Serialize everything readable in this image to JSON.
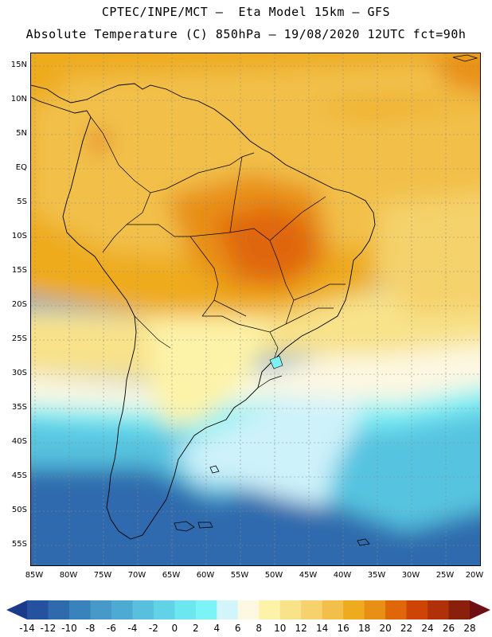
{
  "header": {
    "line1": "CPTEC/INPE/MCT —  Eta Model 15km — GFS",
    "line2": "Absolute Temperature (C) 850hPa — 19/08/2020 12UTC fct=90h"
  },
  "map": {
    "lat_labels": [
      "15N",
      "10N",
      "5N",
      "EQ",
      "5S",
      "10S",
      "15S",
      "20S",
      "25S",
      "30S",
      "35S",
      "40S",
      "45S",
      "50S",
      "55S"
    ],
    "lon_labels": [
      "85W",
      "80W",
      "75W",
      "70W",
      "65W",
      "60W",
      "55W",
      "50W",
      "45W",
      "40W",
      "35W",
      "30W",
      "25W",
      "20W"
    ]
  },
  "legend": {
    "labels": [
      "-14",
      "-12",
      "-10",
      "-8",
      "-6",
      "-4",
      "-2",
      "0",
      "2",
      "4",
      "6",
      "8",
      "10",
      "12",
      "14",
      "16",
      "18",
      "20",
      "22",
      "24",
      "26",
      "28"
    ],
    "colors": [
      "#1c3a8c",
      "#25529e",
      "#2f6aad",
      "#3a82bc",
      "#4799c8",
      "#4caad3",
      "#58bfdc",
      "#62d3e6",
      "#6ce6ef",
      "#7cf3f6",
      "#d2f4fb",
      "#fdf8e2",
      "#fdf3a8",
      "#f8e28a",
      "#f5d26c",
      "#f2c04a",
      "#eeab1f",
      "#e88f15",
      "#e0660a",
      "#cd4406",
      "#b0300a",
      "#8a1f0c",
      "#6e0f14"
    ]
  }
}
